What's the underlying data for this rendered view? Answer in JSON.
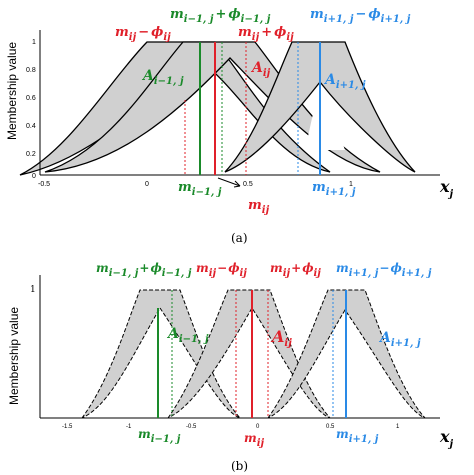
{
  "colors": {
    "black": "#000000",
    "gray_fill": "#d0d0d0",
    "red": "#e0202a",
    "green": "#1a8a2a",
    "blue": "#2a8ae6"
  },
  "panel_a": {
    "ylabel": "Membership value",
    "y_ticks": [
      "1",
      "0.8",
      "0.6",
      "0.4",
      "0.2",
      "0"
    ],
    "x_ticks": [
      "-0.5",
      "0",
      "0.5",
      "1"
    ],
    "x_axis_label": {
      "base": "x",
      "sub": "j"
    },
    "caption": "(a)",
    "labels": {
      "m_prev_plus_phi": {
        "m": "m",
        "m_sub": "i−1, j",
        "op": "+",
        "phi": "ϕ",
        "phi_sub": "i−1, j"
      },
      "m_minus_phi": {
        "m": "m",
        "m_sub": "ij",
        "op": "−",
        "phi": "ϕ",
        "phi_sub": "ij"
      },
      "m_plus_phi": {
        "m": "m",
        "m_sub": "ij",
        "op": "+",
        "phi": "ϕ",
        "phi_sub": "ij"
      },
      "m_next_minus_phi": {
        "m": "m",
        "m_sub": "i+1, j",
        "op": "−",
        "phi": "ϕ",
        "phi_sub": "i+1, j"
      },
      "A_prev": {
        "base": "A",
        "sub": "i−1, j"
      },
      "A_ij": {
        "base": "A",
        "sub": "ij"
      },
      "A_next": {
        "base": "A",
        "sub": "i+1, j"
      },
      "m_prev": {
        "base": "m",
        "sub": "i−1, j"
      },
      "m_ij": {
        "base": "m",
        "sub": "ij"
      },
      "m_next": {
        "base": "m",
        "sub": "i+1, j"
      }
    }
  },
  "panel_b": {
    "ylabel": "Membership value",
    "y_tick_one": "1",
    "x_ticks": [
      "-1.5",
      "-1",
      "-0.5",
      "0",
      "0.5",
      "1"
    ],
    "x_axis_label": {
      "base": "x",
      "sub": "j"
    },
    "caption": "(b)",
    "labels": {
      "m_prev_plus_phi": {
        "m": "m",
        "m_sub": "i−1, j",
        "op": "+",
        "phi": "ϕ",
        "phi_sub": "i−1, j"
      },
      "m_minus_phi": {
        "m": "m",
        "m_sub": "ij",
        "op": "−",
        "phi": "ϕ",
        "phi_sub": "ij"
      },
      "m_plus_phi": {
        "m": "m",
        "m_sub": "ij",
        "op": "+",
        "phi": "ϕ",
        "phi_sub": "ij"
      },
      "m_next_minus_phi": {
        "m": "m",
        "m_sub": "i+1, j",
        "op": "−",
        "phi": "ϕ",
        "phi_sub": "i+1, j"
      },
      "A_prev": {
        "base": "A",
        "sub": "i−1, j"
      },
      "A_ij": {
        "base": "A",
        "sub": "ij"
      },
      "A_next": {
        "base": "A",
        "sub": "i+1, j"
      },
      "m_prev": {
        "base": "m",
        "sub": "i−1, j"
      },
      "m_ij": {
        "base": "m",
        "sub": "ij"
      },
      "m_next": {
        "base": "m",
        "sub": "i+1, j"
      }
    }
  }
}
